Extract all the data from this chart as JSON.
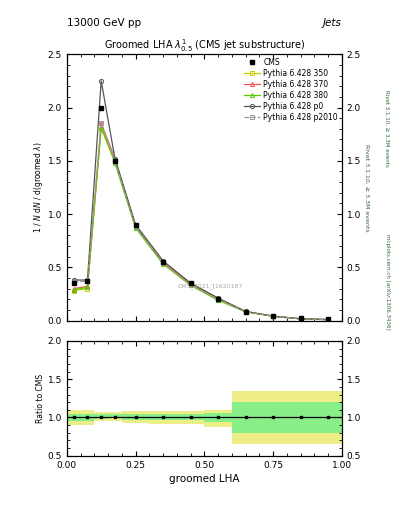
{
  "title": "13000 GeV pp",
  "title_right": "Jets",
  "plot_title": "Groomed LHA $\\lambda^{1}_{0.5}$ (CMS jet substructure)",
  "xlabel": "groomed LHA",
  "ylabel_left": "1 / $\\mathit{N}$ d$\\mathit{N}$ / d(groomed $\\lambda$)",
  "ylabel_right": "Rivet 3.1.10, ≥ 3.3M events",
  "right_label2": "mcplots.cern.ch [arXiv:1306.3436]",
  "watermark": "CMS_2021_’[1620187",
  "x_data": [
    0.025,
    0.075,
    0.125,
    0.175,
    0.25,
    0.35,
    0.45,
    0.55,
    0.65,
    0.75,
    0.85,
    0.95
  ],
  "cms_y": [
    0.35,
    0.37,
    2.0,
    1.5,
    0.9,
    0.55,
    0.35,
    0.2,
    0.08,
    0.04,
    0.02,
    0.01
  ],
  "p350_y": [
    0.28,
    0.3,
    1.8,
    1.5,
    0.88,
    0.54,
    0.34,
    0.2,
    0.08,
    0.04,
    0.015,
    0.008
  ],
  "p370_y": [
    0.3,
    0.32,
    1.85,
    1.52,
    0.89,
    0.55,
    0.35,
    0.21,
    0.085,
    0.042,
    0.016,
    0.009
  ],
  "p380_y": [
    0.29,
    0.31,
    1.82,
    1.48,
    0.87,
    0.53,
    0.33,
    0.19,
    0.082,
    0.041,
    0.015,
    0.008
  ],
  "pp0_y": [
    0.38,
    0.38,
    2.25,
    1.52,
    0.9,
    0.56,
    0.35,
    0.21,
    0.085,
    0.04,
    0.016,
    0.009
  ],
  "p2010_y": [
    0.36,
    0.37,
    1.85,
    1.5,
    0.88,
    0.54,
    0.33,
    0.2,
    0.082,
    0.04,
    0.015,
    0.008
  ],
  "x_bins": [
    0.0,
    0.05,
    0.1,
    0.15,
    0.2,
    0.3,
    0.4,
    0.5,
    0.6,
    0.7,
    0.8,
    0.9,
    1.0
  ],
  "ratio_yellow_lo": [
    0.9,
    0.9,
    0.95,
    0.96,
    0.93,
    0.92,
    0.92,
    0.88,
    0.65,
    0.65,
    0.65,
    0.65
  ],
  "ratio_yellow_hi": [
    1.1,
    1.1,
    1.07,
    1.07,
    1.09,
    1.09,
    1.09,
    1.1,
    1.35,
    1.35,
    1.35,
    1.35
  ],
  "ratio_green_lo": [
    0.95,
    0.95,
    0.98,
    0.99,
    0.97,
    0.97,
    0.97,
    0.94,
    0.8,
    0.8,
    0.8,
    0.8
  ],
  "ratio_green_hi": [
    1.05,
    1.05,
    1.04,
    1.04,
    1.05,
    1.05,
    1.05,
    1.06,
    1.2,
    1.2,
    1.2,
    1.2
  ],
  "color_350": "#cccc00",
  "color_370": "#ee5555",
  "color_380": "#55cc00",
  "color_p0": "#555555",
  "color_p2010": "#999999",
  "color_cms": "#000000",
  "color_yellow": "#eeee88",
  "color_green": "#88ee88",
  "ylim_main": [
    0.0,
    2.5
  ],
  "ylim_ratio": [
    0.5,
    2.0
  ],
  "xlim": [
    0.0,
    1.0
  ]
}
